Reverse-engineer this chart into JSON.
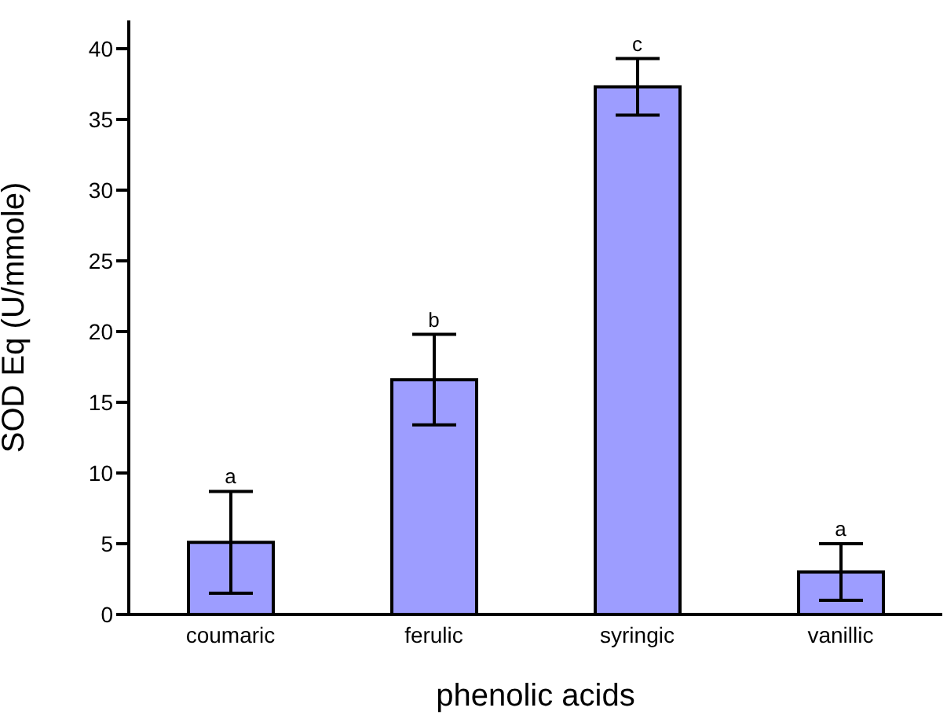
{
  "chart_data": {
    "type": "bar",
    "xlabel": "phenolic acids",
    "ylabel": "SOD Eq (U/mmole)",
    "categories": [
      "coumaric",
      "ferulic",
      "syringic",
      "vanillic"
    ],
    "values": [
      5.1,
      16.6,
      37.3,
      3.0
    ],
    "errors": [
      3.6,
      3.2,
      2.0,
      2.0
    ],
    "color": "#9d9dff",
    "ylim": [
      0,
      42
    ],
    "yticks": [
      0,
      5,
      10,
      15,
      20,
      25,
      30,
      35,
      40
    ],
    "annotations": [
      {
        "text": "a",
        "x": "coumaric",
        "y": 8.7
      },
      {
        "text": "b",
        "x": "ferulic",
        "y": 19.8
      },
      {
        "text": "c",
        "x": "syringic",
        "y": 39.3
      },
      {
        "text": "a",
        "x": "vanillic",
        "y": 5.0
      }
    ]
  }
}
